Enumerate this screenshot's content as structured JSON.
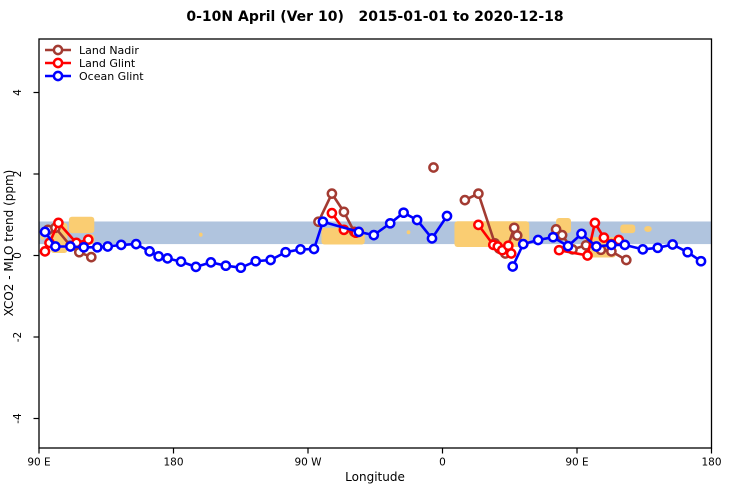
{
  "title": "0-10N April (Ver 10)   2015-01-01 to 2020-12-18",
  "chart_data": {
    "type": "line",
    "title": "0-10N April (Ver 10)   2015-01-01 to 2020-12-18",
    "xlabel": "Longitude",
    "ylabel": "XCO2 - MLO trend (ppm)",
    "x_axis": {
      "note": "longitude axis wraps eastward; extended degrees 90..540",
      "range": [
        90,
        540
      ],
      "ticks": [
        {
          "pos": 90,
          "label": "90 E"
        },
        {
          "pos": 180,
          "label": "180"
        },
        {
          "pos": 270,
          "label": "90 W"
        },
        {
          "pos": 360,
          "label": "0"
        },
        {
          "pos": 450,
          "label": "90 E"
        },
        {
          "pos": 540,
          "label": "180"
        }
      ]
    },
    "y_axis": {
      "range": [
        -4.72,
        5.31
      ],
      "ticks": [
        -4,
        -2,
        0,
        2,
        4
      ]
    },
    "grid": false,
    "legend_position": "top-left",
    "band_color": "#B0C4DE",
    "patch_color": "#FACD72",
    "bands": [
      {
        "name": "reference-band",
        "lon": [
          90,
          540
        ],
        "v": [
          0.28,
          0.835
        ]
      }
    ],
    "patches": [
      {
        "lon": [
          91,
          93.5
        ],
        "v": [
          0.38,
          0.56
        ]
      },
      {
        "lon": [
          98,
          109
        ],
        "v": [
          0.06,
          0.8
        ]
      },
      {
        "lon": [
          110,
          127
        ],
        "v": [
          0.55,
          0.95
        ]
      },
      {
        "lon": [
          120,
          127
        ],
        "v": [
          0.28,
          0.52
        ]
      },
      {
        "lon": [
          197,
          199.5
        ],
        "v": [
          0.46,
          0.56
        ]
      },
      {
        "lon": [
          279,
          308
        ],
        "v": [
          0.27,
          0.68
        ]
      },
      {
        "lon": [
          336,
          338.5
        ],
        "v": [
          0.52,
          0.62
        ]
      },
      {
        "lon": [
          368,
          418
        ],
        "v": [
          0.21,
          0.84
        ]
      },
      {
        "lon": [
          436,
          446
        ],
        "v": [
          0.55,
          0.92
        ]
      },
      {
        "lon": [
          455,
          476
        ],
        "v": [
          -0.05,
          0.45
        ]
      },
      {
        "lon": [
          479,
          489
        ],
        "v": [
          0.55,
          0.76
        ]
      },
      {
        "lon": [
          495,
          500
        ],
        "v": [
          0.58,
          0.72
        ]
      }
    ],
    "series": [
      {
        "name": "Land Nadir",
        "color": "#A33B32",
        "segments": [
          [
            [
              96,
              0.63
            ],
            [
              101,
              0.68
            ],
            [
              111,
              0.24
            ],
            [
              117,
              0.08
            ],
            [
              125,
              -0.04
            ]
          ],
          [
            [
              277,
              0.83
            ],
            [
              286,
              1.52
            ],
            [
              294,
              1.07
            ],
            [
              301,
              0.58
            ]
          ],
          [
            [
              354,
              2.16
            ]
          ],
          [
            [
              375,
              1.36
            ],
            [
              384,
              1.52
            ],
            [
              395,
              0.3
            ],
            [
              398,
              0.17
            ],
            [
              402,
              0.05
            ],
            [
              408,
              0.68
            ],
            [
              410,
              0.49
            ]
          ],
          [
            [
              436,
              0.64
            ],
            [
              440,
              0.5
            ],
            [
              447,
              0.15
            ],
            [
              456,
              0.25
            ],
            [
              466,
              0.14
            ],
            [
              473,
              0.1
            ],
            [
              483,
              -0.11
            ]
          ]
        ]
      },
      {
        "name": "Land Glint",
        "color": "#FF0000",
        "segments": [
          [
            [
              94,
              0.1
            ],
            [
              97,
              0.31
            ],
            [
              103,
              0.8
            ],
            [
              115,
              0.31
            ],
            [
              123,
              0.39
            ]
          ],
          [
            [
              286,
              1.04
            ],
            [
              294,
              0.63
            ],
            [
              302,
              0.56
            ]
          ],
          [
            [
              384,
              0.75
            ],
            [
              394,
              0.26
            ],
            [
              397,
              0.22
            ],
            [
              400,
              0.13
            ],
            [
              404,
              0.24
            ],
            [
              406,
              0.05
            ]
          ],
          [
            [
              438,
              0.13
            ],
            [
              457,
              0.0
            ],
            [
              462,
              0.8
            ],
            [
              468,
              0.44
            ],
            [
              473,
              0.28
            ],
            [
              478,
              0.38
            ]
          ]
        ]
      },
      {
        "name": "Ocean Glint",
        "color": "#0000FF",
        "segments": [
          [
            [
              94,
              0.58
            ],
            [
              101,
              0.22
            ],
            [
              111,
              0.22
            ],
            [
              120,
              0.2
            ],
            [
              129,
              0.2
            ],
            [
              136,
              0.22
            ],
            [
              145,
              0.26
            ],
            [
              155,
              0.28
            ],
            [
              164,
              0.1
            ],
            [
              170,
              -0.02
            ],
            [
              176,
              -0.07
            ],
            [
              185,
              -0.15
            ],
            [
              195,
              -0.28
            ],
            [
              205,
              -0.17
            ],
            [
              215,
              -0.25
            ],
            [
              225,
              -0.3
            ],
            [
              235,
              -0.14
            ],
            [
              245,
              -0.11
            ],
            [
              255,
              0.08
            ],
            [
              265,
              0.15
            ],
            [
              274,
              0.16
            ],
            [
              280,
              0.83
            ],
            [
              304,
              0.58
            ],
            [
              314,
              0.5
            ],
            [
              325,
              0.79
            ],
            [
              334,
              1.05
            ],
            [
              343,
              0.87
            ],
            [
              353,
              0.42
            ],
            [
              363,
              0.97
            ]
          ],
          [
            [
              407,
              -0.27
            ],
            [
              414,
              0.28
            ],
            [
              424,
              0.38
            ],
            [
              434,
              0.45
            ],
            [
              444,
              0.23
            ],
            [
              453,
              0.53
            ],
            [
              463,
              0.22
            ],
            [
              473,
              0.26
            ],
            [
              482,
              0.26
            ],
            [
              494,
              0.15
            ],
            [
              504,
              0.19
            ],
            [
              514,
              0.27
            ],
            [
              524,
              0.08
            ],
            [
              533,
              -0.14
            ]
          ]
        ]
      }
    ]
  }
}
